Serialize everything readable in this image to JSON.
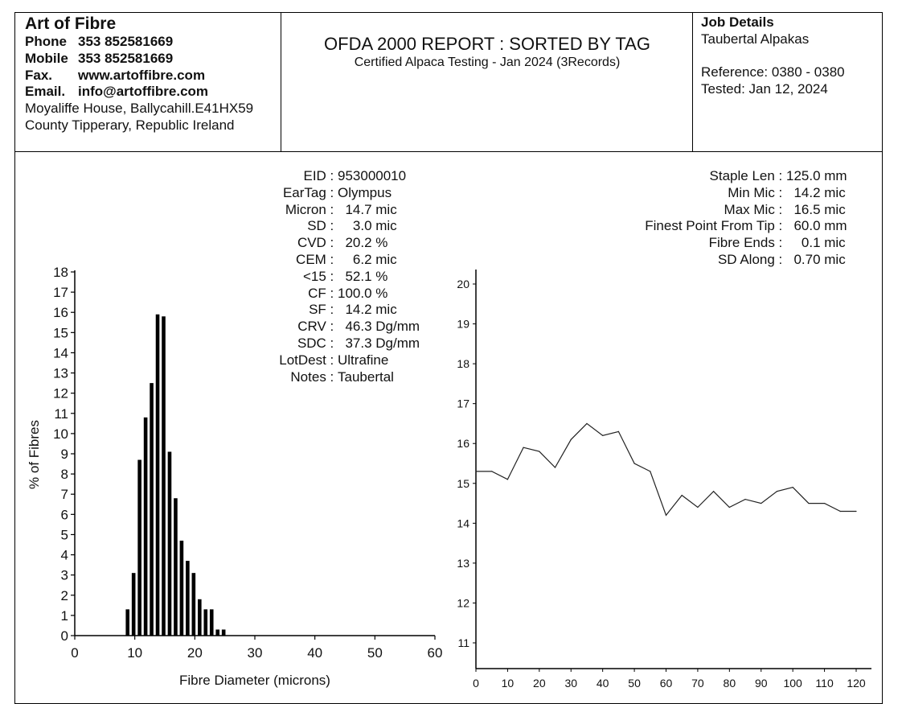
{
  "company": {
    "name": "Art of Fibre",
    "rows": [
      {
        "label": "Phone",
        "value": "353 852581669"
      },
      {
        "label": "Mobile",
        "value": "353 852581669"
      },
      {
        "label": "Fax.",
        "value": "www.artoffibre.com"
      },
      {
        "label": "Email.",
        "value": "info@artoffibre.com"
      }
    ],
    "address_line1": "Moyaliffe House, Ballycahill.E41HX59",
    "address_line2": "County Tipperary, Republic Ireland"
  },
  "report": {
    "title": "OFDA 2000 REPORT : SORTED BY TAG",
    "subtitle": "Certified Alpaca Testing - Jan 2024 (3Records)"
  },
  "job": {
    "heading": "Job Details",
    "client": "Taubertal Alpakas",
    "reference": "Reference: 0380 - 0380",
    "tested": "Tested: Jan 12, 2024"
  },
  "sample_stats": [
    {
      "label": "EID",
      "value": "953000010"
    },
    {
      "label": "EarTag",
      "value": "Olympus"
    },
    {
      "label": "Micron",
      "value": "  14.7 mic"
    },
    {
      "label": "SD",
      "value": "    3.0 mic"
    },
    {
      "label": "CVD",
      "value": "  20.2 %"
    },
    {
      "label": "CEM",
      "value": "    6.2 mic"
    },
    {
      "label": "<15",
      "value": "  52.1 %"
    },
    {
      "label": "CF",
      "value": "100.0 %"
    },
    {
      "label": "SF",
      "value": "  14.2 mic"
    },
    {
      "label": "CRV",
      "value": "  46.3 Dg/mm"
    },
    {
      "label": "SDC",
      "value": "  37.3 Dg/mm"
    },
    {
      "label": "LotDest",
      "value": "Ultrafine"
    },
    {
      "label": "Notes",
      "value": "Taubertal"
    }
  ],
  "staple_stats": [
    {
      "label": "Staple Len",
      "value": "125.0 mm"
    },
    {
      "label": "Min Mic",
      "value": "  14.2 mic"
    },
    {
      "label": "Max Mic",
      "value": "  16.5 mic"
    },
    {
      "label": "Finest Point From Tip",
      "value": "  60.0 mm"
    },
    {
      "label": "Fibre Ends",
      "value": "    0.1 mic"
    },
    {
      "label": "SD Along",
      "value": "  0.70 mic"
    }
  ],
  "chart_data": [
    {
      "type": "bar",
      "title": "",
      "xlabel": "Fibre Diameter (microns)",
      "ylabel": "% of Fibres",
      "xlim": [
        0,
        60
      ],
      "ylim": [
        0,
        18
      ],
      "xticks": [
        0,
        10,
        20,
        30,
        40,
        50,
        60
      ],
      "yticks": [
        0,
        1,
        2,
        3,
        4,
        5,
        6,
        7,
        8,
        9,
        10,
        11,
        12,
        13,
        14,
        15,
        16,
        17,
        18
      ],
      "grid": false,
      "x": [
        9,
        10,
        11,
        12,
        13,
        14,
        15,
        16,
        17,
        18,
        19,
        20,
        21,
        22,
        23,
        24,
        25
      ],
      "values": [
        1.3,
        3.1,
        8.7,
        10.8,
        12.5,
        15.9,
        15.8,
        9.1,
        6.8,
        4.7,
        3.7,
        3.1,
        1.8,
        1.3,
        1.3,
        0.3,
        0.3
      ]
    },
    {
      "type": "line",
      "title": "",
      "xlabel": "",
      "ylabel": "",
      "xlim": [
        0,
        125
      ],
      "ylim": [
        10.35,
        20.35
      ],
      "xticks": [
        0,
        10,
        20,
        30,
        40,
        50,
        60,
        70,
        80,
        90,
        100,
        110,
        120
      ],
      "yticks": [
        11,
        12,
        13,
        14,
        15,
        16,
        17,
        18,
        19,
        20
      ],
      "grid": false,
      "x": [
        0,
        5,
        10,
        15,
        20,
        25,
        30,
        35,
        40,
        45,
        50,
        55,
        60,
        65,
        70,
        75,
        80,
        85,
        90,
        95,
        100,
        105,
        110,
        115,
        120
      ],
      "values": [
        15.3,
        15.3,
        15.1,
        15.9,
        15.8,
        15.4,
        16.1,
        16.5,
        16.2,
        16.3,
        15.5,
        15.3,
        14.2,
        14.7,
        14.4,
        14.8,
        14.4,
        14.6,
        14.5,
        14.8,
        14.9,
        14.5,
        14.5,
        14.3,
        14.3
      ]
    }
  ]
}
